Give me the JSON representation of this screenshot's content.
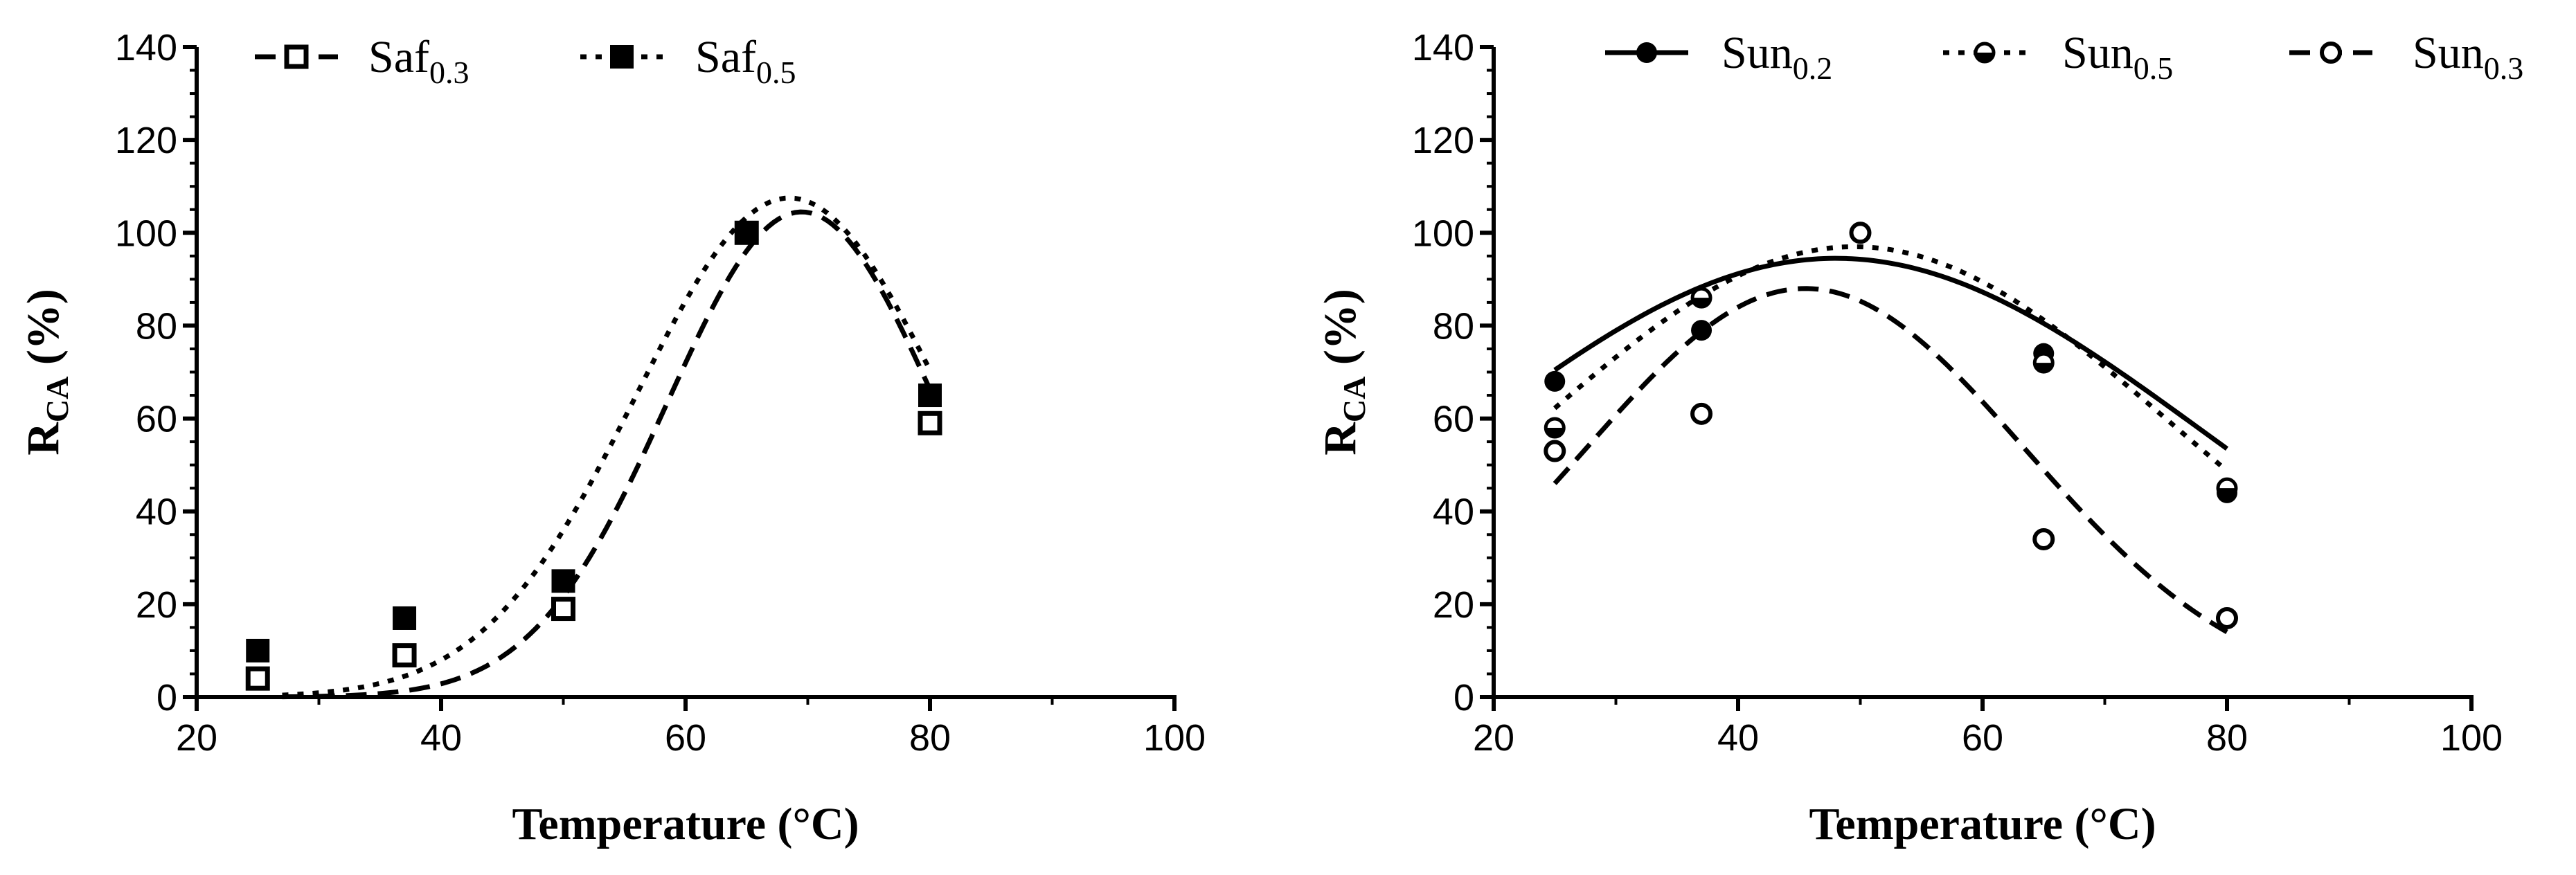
{
  "chart_data": [
    {
      "type": "scatter",
      "xlabel": "Temperature (°C)",
      "ylabel_main": "R",
      "ylabel_sub": "CA",
      "ylabel_rest": " (%)",
      "xlim": [
        20,
        100
      ],
      "ylim": [
        0,
        140
      ],
      "xticks": [
        20,
        40,
        60,
        80,
        100
      ],
      "yticks": [
        0,
        20,
        40,
        60,
        80,
        100,
        120,
        140
      ],
      "legend_position": "top",
      "series": [
        {
          "name_base": "Saf",
          "name_sub": "0.3",
          "marker": "open-square",
          "line_style": "long-dash",
          "x": [
            25,
            37,
            50,
            65,
            80
          ],
          "y": [
            4,
            9,
            19,
            100,
            59
          ],
          "fit": {
            "model": "gaussian",
            "peak": 104.5,
            "center": 69.5,
            "width": 11.0,
            "range": [
              27,
              80
            ]
          }
        },
        {
          "name_base": "Saf",
          "name_sub": "0.5",
          "marker": "filled-square",
          "line_style": "dotted",
          "x": [
            25,
            37,
            50,
            65,
            80
          ],
          "y": [
            10,
            17,
            25,
            100,
            65
          ],
          "fit": {
            "model": "gaussian",
            "peak": 107.5,
            "center": 68.5,
            "width": 12.5,
            "range": [
              27,
              80
            ]
          }
        }
      ]
    },
    {
      "type": "scatter",
      "xlabel": "Temperature (°C)",
      "ylabel_main": "R",
      "ylabel_sub": "CA",
      "ylabel_rest": " (%)",
      "xlim": [
        20,
        100
      ],
      "ylim": [
        0,
        140
      ],
      "xticks": [
        20,
        40,
        60,
        80,
        100
      ],
      "yticks": [
        0,
        20,
        40,
        60,
        80,
        100,
        120,
        140
      ],
      "legend_position": "top",
      "series": [
        {
          "name_base": "Sun",
          "name_sub": "0.2",
          "marker": "filled-circle",
          "line_style": "solid",
          "x": [
            25,
            37,
            50,
            65,
            80
          ],
          "y": [
            68,
            79,
            100,
            74,
            44
          ],
          "fit": {
            "model": "gaussian",
            "peak": 94.5,
            "center": 48.0,
            "width": 30.0,
            "range": [
              25,
              80
            ]
          }
        },
        {
          "name_base": "Sun",
          "name_sub": "0.5",
          "marker": "half-circle",
          "line_style": "dotted",
          "x": [
            25,
            37,
            50,
            65,
            80
          ],
          "y": [
            58,
            86,
            100,
            72,
            45
          ],
          "fit": {
            "model": "gaussian",
            "peak": 97.0,
            "center": 49.5,
            "width": 26.0,
            "range": [
              25,
              80
            ]
          }
        },
        {
          "name_base": "Sun",
          "name_sub": "0.3",
          "marker": "open-circle",
          "line_style": "long-dash",
          "x": [
            25,
            37,
            50,
            65,
            80
          ],
          "y": [
            53,
            61,
            100,
            34,
            17
          ],
          "fit": {
            "model": "gaussian",
            "peak": 88.0,
            "center": 45.5,
            "width": 18.0,
            "range": [
              25,
              80
            ]
          }
        }
      ]
    }
  ]
}
